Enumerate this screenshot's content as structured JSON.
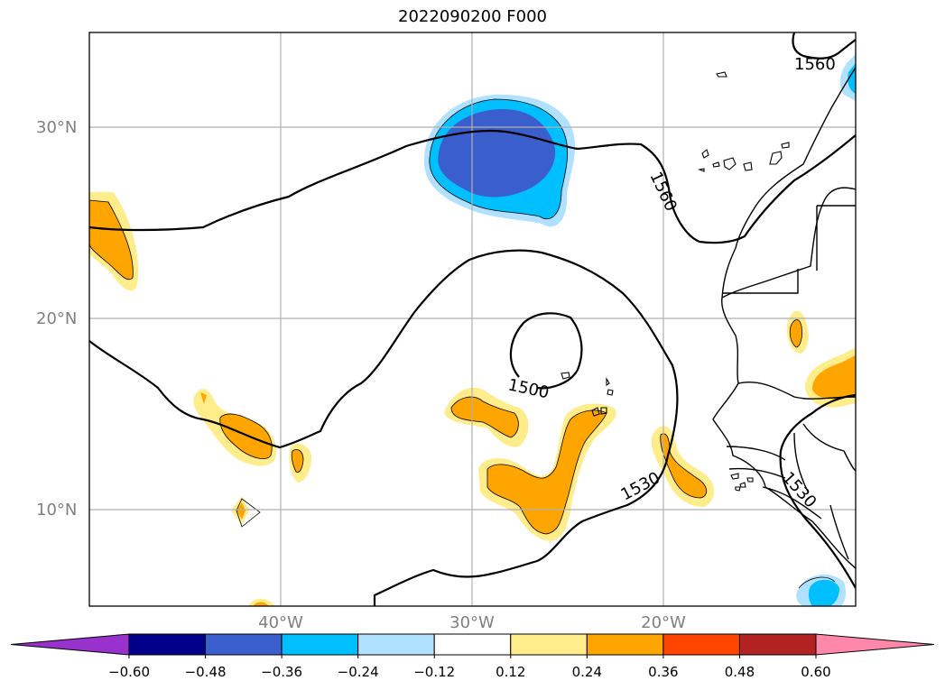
{
  "title": "2022090200 F000",
  "latitude_labels": [
    "30°N",
    "20°N",
    "10°N"
  ],
  "longitude_labels": [
    "40°W",
    "30°W",
    "20°W"
  ],
  "contour_labels": [
    "1560",
    "1560",
    "1500",
    "1530",
    "1530"
  ],
  "colorbar": {
    "ticks": [
      "−0.60",
      "−0.48",
      "−0.36",
      "−0.24",
      "−0.12",
      "0.12",
      "0.24",
      "0.36",
      "0.48",
      "0.60"
    ],
    "colors": [
      "#9932cc",
      "#00008b",
      "#3a5fcd",
      "#00bfff",
      "#b0e2ff",
      "#ffffff",
      "#ffec8b",
      "#ffa500",
      "#ff4500",
      "#b22222",
      "#ff88aa"
    ]
  },
  "colors": {
    "land_line": "#000000",
    "grid": "#b0b0b0",
    "contour": "#000000"
  }
}
